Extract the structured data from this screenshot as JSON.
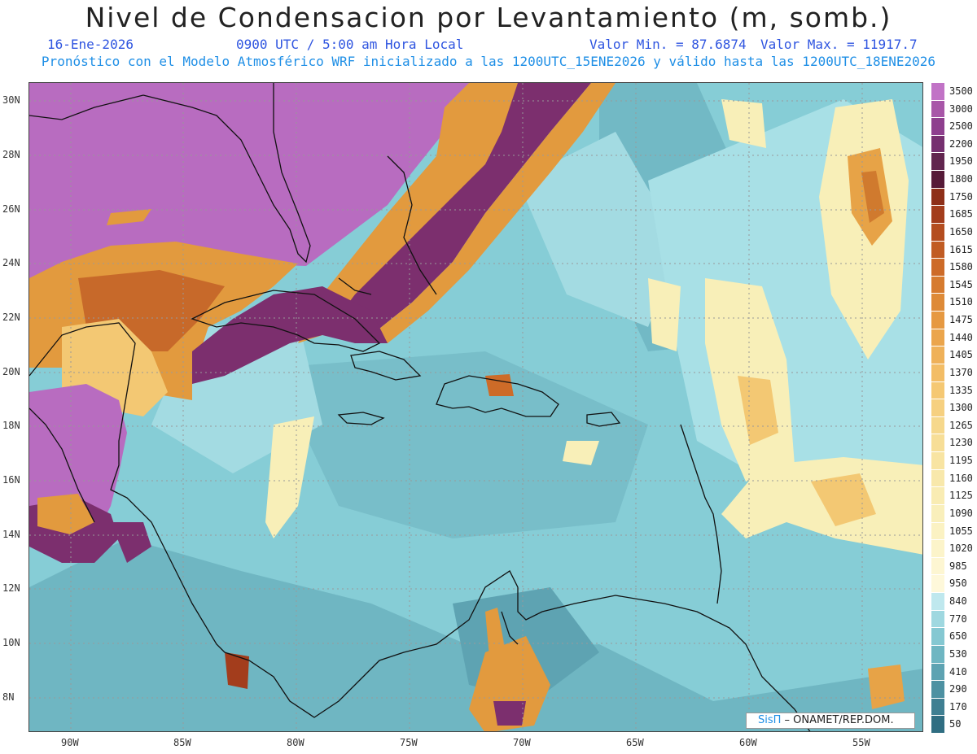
{
  "header": {
    "title": "Nivel de Condensacion por Levantamiento (m, somb.)",
    "date": "16-Ene-2026",
    "time": "0900 UTC / 5:00 am Hora Local",
    "min_label": "Valor Min. = 87.6874",
    "max_label": "Valor Max. = 11917.7",
    "forecast_note": "Pronóstico con el Modelo Atmosférico WRF inicializado a las 1200UTC_15ENE2026 y válido hasta las  1200UTC_18ENE2026"
  },
  "map": {
    "lon_labels": [
      "90W",
      "85W",
      "80W",
      "75W",
      "70W",
      "65W",
      "60W",
      "55W"
    ],
    "lat_labels": [
      "30N",
      "28N",
      "26N",
      "24N",
      "22N",
      "20N",
      "18N",
      "16N",
      "14N",
      "12N",
      "10N",
      "8N"
    ],
    "credit_brand": "SisΠ",
    "credit_text": " – ONAMET/REP.DOM."
  },
  "legend": {
    "labels": [
      "3500",
      "3000",
      "2500",
      "2200",
      "1950",
      "1800",
      "1750",
      "1685",
      "1650",
      "1615",
      "1580",
      "1545",
      "1510",
      "1475",
      "1440",
      "1405",
      "1370",
      "1335",
      "1300",
      "1265",
      "1230",
      "1195",
      "1160",
      "1125",
      "1090",
      "1055",
      "1020",
      "985",
      "950",
      "840",
      "770",
      "650",
      "530",
      "410",
      "290",
      "170",
      "50"
    ],
    "colors": [
      "#c173c6",
      "#a856a8",
      "#8e3f8e",
      "#763070",
      "#62264f",
      "#561a38",
      "#8e2f18",
      "#a33d1c",
      "#b44d1f",
      "#c15c23",
      "#cd6b28",
      "#d67b2f",
      "#de8a37",
      "#e69941",
      "#eba54c",
      "#efb159",
      "#f3bd66",
      "#f5c873",
      "#f6d080",
      "#f6d88c",
      "#f7de97",
      "#f8e4a2",
      "#f8e8ab",
      "#f9ecb3",
      "#f9efbb",
      "#fbf2c3",
      "#fcf4ca",
      "#fdf6d2",
      "#fef8da",
      "#bfe8ee",
      "#9fd8e0",
      "#85c8d2",
      "#6fb6c2",
      "#5ea3b2",
      "#4d91a2",
      "#3f7f92",
      "#306e82"
    ]
  },
  "colors": {
    "ocean_base": "#86cdd6",
    "ocean_deep": "#66b2c0",
    "ocean_light": "#a8e0e6",
    "dry_purple": "#b86cc0",
    "dark_purple": "#7c2f6e",
    "orange": "#e09a3c",
    "yellow": "#f8efb8"
  }
}
